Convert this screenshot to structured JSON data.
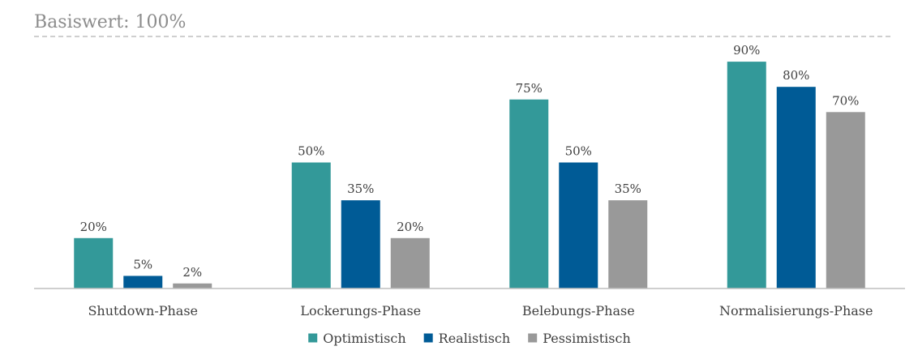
{
  "chart_data": {
    "type": "bar",
    "baseline_label": "Basiswert: 100%",
    "baseline_value": 100,
    "categories": [
      "Shutdown-Phase",
      "Lockerungs-Phase",
      "Belebungs-Phase",
      "Normalisierungs-Phase"
    ],
    "series": [
      {
        "name": "Optimistisch",
        "color": "#339999",
        "values": [
          20,
          50,
          75,
          90
        ],
        "labels": [
          "20%",
          "50%",
          "75%",
          "90%"
        ]
      },
      {
        "name": "Realistisch",
        "color": "#005b96",
        "values": [
          5,
          35,
          50,
          80
        ],
        "labels": [
          "5%",
          "35%",
          "50%",
          "80%"
        ]
      },
      {
        "name": "Pessimistisch",
        "color": "#999999",
        "values": [
          2,
          20,
          35,
          70
        ],
        "labels": [
          "2%",
          "20%",
          "35%",
          "70%"
        ]
      }
    ],
    "ylim": [
      0,
      100
    ],
    "grid": false,
    "legend": "bottom"
  }
}
